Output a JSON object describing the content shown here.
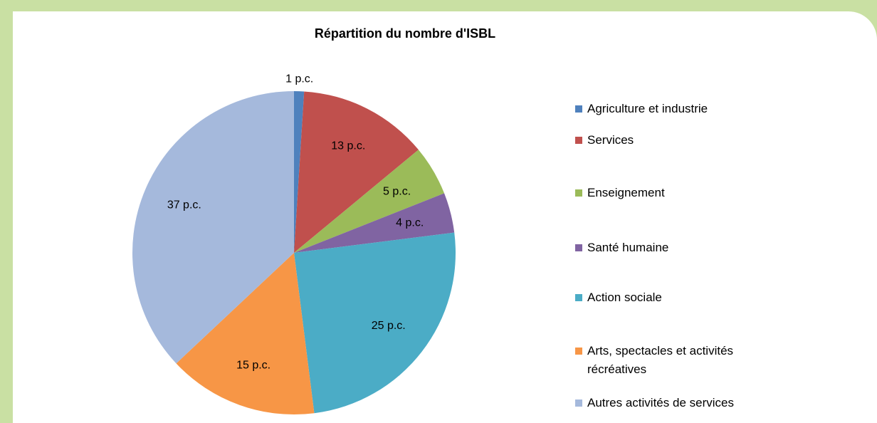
{
  "chart_data": {
    "type": "pie",
    "title": "Répartition du nombre d'ISBL",
    "categories": [
      "Agriculture et industrie",
      "Services",
      "Enseignement",
      "Santé humaine",
      "Action sociale",
      "Arts, spectacles et activités récréatives",
      "Autres activités de services"
    ],
    "values": [
      1,
      13,
      5,
      4,
      25,
      15,
      37
    ],
    "value_labels": [
      "1 p.c.",
      "13 p.c.",
      "5 p.c.",
      "4 p.c.",
      "25 p.c.",
      "15 p.c.",
      "37 p.c."
    ],
    "colors": [
      "#4f81bd",
      "#c0504d",
      "#9bbb59",
      "#8064a2",
      "#4bacc6",
      "#f79646",
      "#a5b9dc"
    ],
    "legend": "right"
  }
}
